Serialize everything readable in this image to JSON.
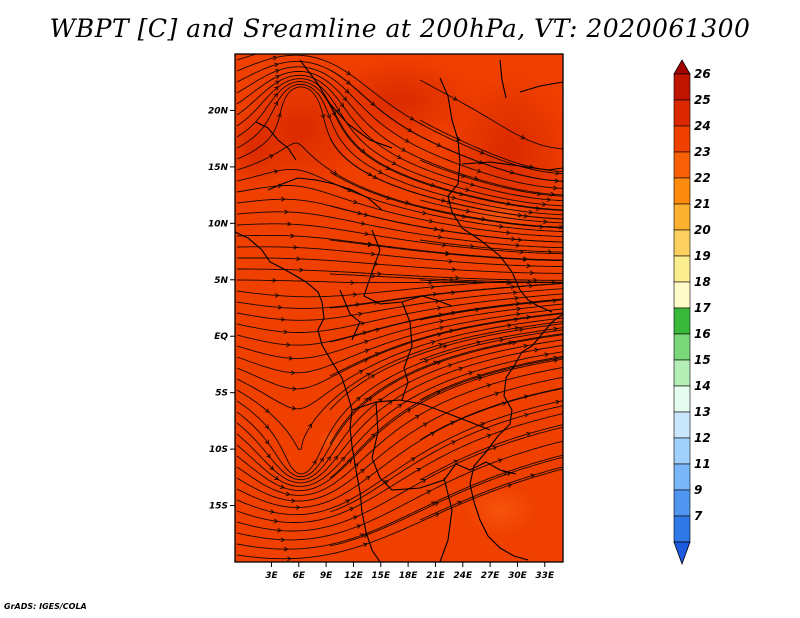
{
  "title": "WBPT [C] and Sreamline at 200hPa, VT: 2020061300",
  "credit": "GrADS: IGES/COLA",
  "chart_data": {
    "type": "heatmap",
    "variable": "WBPT",
    "units": "C",
    "overlay": "streamlines",
    "level": "200hPa",
    "valid_time": "2020061300",
    "lon_range": [
      -1,
      35
    ],
    "lat_range": [
      -20,
      25
    ],
    "x_ticks": [
      3,
      6,
      9,
      12,
      15,
      18,
      21,
      24,
      27,
      30,
      33
    ],
    "x_tick_labels": [
      "3E",
      "6E",
      "9E",
      "12E",
      "15E",
      "18E",
      "21E",
      "24E",
      "27E",
      "30E",
      "33E"
    ],
    "y_ticks": [
      20,
      15,
      10,
      5,
      0,
      -5,
      -10,
      -15
    ],
    "y_tick_labels": [
      "20N",
      "15N",
      "10N",
      "5N",
      "EQ",
      "5S",
      "10S",
      "15S"
    ],
    "colorbar": {
      "labels": [
        "26",
        "25",
        "24",
        "23",
        "22",
        "21",
        "20",
        "19",
        "18",
        "17",
        "16",
        "15",
        "14",
        "13",
        "12",
        "11",
        "9",
        "7"
      ],
      "colors": [
        "#a50000",
        "#be1400",
        "#dc2800",
        "#f04000",
        "#f86008",
        "#fc8a0c",
        "#fcb030",
        "#fcd060",
        "#fcee90",
        "#fefbc8",
        "#3ab83a",
        "#7ad87a",
        "#b4eeb4",
        "#e6fcf0",
        "#c8e6fc",
        "#a0d0fc",
        "#78b6f8",
        "#5096f0",
        "#2e78e8",
        "#1e5ae0"
      ],
      "extend": "both"
    },
    "dominant_range": [
      23,
      26
    ]
  }
}
